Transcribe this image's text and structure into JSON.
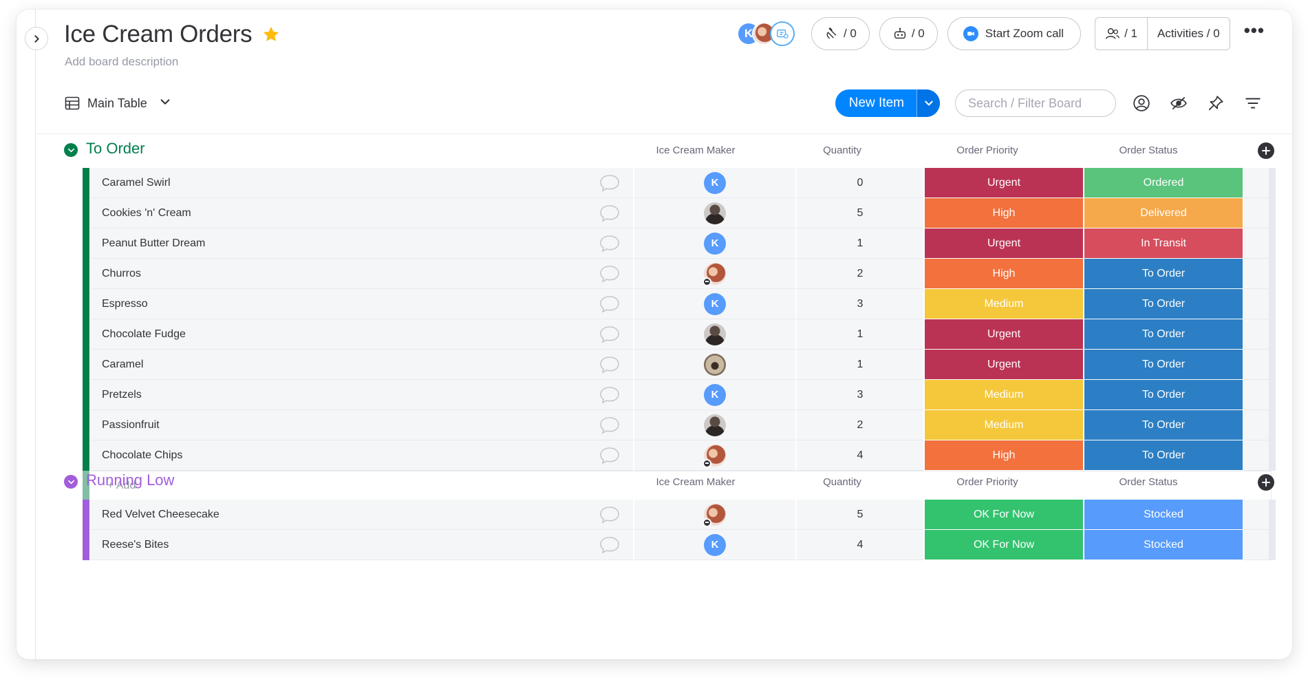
{
  "board": {
    "title": "Ice Cream Orders",
    "description": "Add board description"
  },
  "header": {
    "avatar_initial": "K",
    "updates_count": "/ 0",
    "automations_count": "/ 0",
    "zoom_label": "Start Zoom call",
    "members_count": "/ 1",
    "activities_label": "Activities / 0"
  },
  "toolbar": {
    "view_label": "Main Table",
    "new_item_label": "New Item",
    "search_placeholder": "Search / Filter Board"
  },
  "columns": {
    "maker": "Ice Cream Maker",
    "quantity": "Quantity",
    "priority": "Order Priority",
    "status": "Order Status"
  },
  "colors": {
    "to_order_group": "#037f4c",
    "running_low_group": "#a25ddc",
    "urgent": "#bb3354",
    "high": "#f2713c",
    "medium": "#f5c83b",
    "ok_for_now": "#33c26e",
    "ordered": "#5ac47d",
    "delivered": "#f5a94a",
    "in_transit": "#d64d5d",
    "to_order_status": "#2c7fc4",
    "stocked": "#579bfc"
  },
  "groups": [
    {
      "title": "To Order",
      "add_label": "+ Add",
      "rows": [
        {
          "name": "Caramel Swirl",
          "maker": "K",
          "quantity": "0",
          "priority": "Urgent",
          "status": "Ordered"
        },
        {
          "name": "Cookies 'n' Cream",
          "maker": "photo1",
          "quantity": "5",
          "priority": "High",
          "status": "Delivered"
        },
        {
          "name": "Peanut Butter Dream",
          "maker": "K",
          "quantity": "1",
          "priority": "Urgent",
          "status": "In Transit"
        },
        {
          "name": "Churros",
          "maker": "photo2",
          "quantity": "2",
          "priority": "High",
          "status": "To Order"
        },
        {
          "name": "Espresso",
          "maker": "K",
          "quantity": "3",
          "priority": "Medium",
          "status": "To Order"
        },
        {
          "name": "Chocolate Fudge",
          "maker": "photo1",
          "quantity": "1",
          "priority": "Urgent",
          "status": "To Order"
        },
        {
          "name": "Caramel",
          "maker": "photo3",
          "quantity": "1",
          "priority": "Urgent",
          "status": "To Order"
        },
        {
          "name": "Pretzels",
          "maker": "K",
          "quantity": "3",
          "priority": "Medium",
          "status": "To Order"
        },
        {
          "name": "Passionfruit",
          "maker": "photo1",
          "quantity": "2",
          "priority": "Medium",
          "status": "To Order"
        },
        {
          "name": "Chocolate Chips",
          "maker": "photo2",
          "quantity": "4",
          "priority": "High",
          "status": "To Order"
        }
      ]
    },
    {
      "title": "Running Low",
      "rows": [
        {
          "name": "Red Velvet Cheesecake",
          "maker": "photo2",
          "quantity": "5",
          "priority": "OK For Now",
          "status": "Stocked"
        },
        {
          "name": "Reese's Bites",
          "maker": "K",
          "quantity": "4",
          "priority": "OK For Now",
          "status": "Stocked"
        }
      ]
    }
  ]
}
